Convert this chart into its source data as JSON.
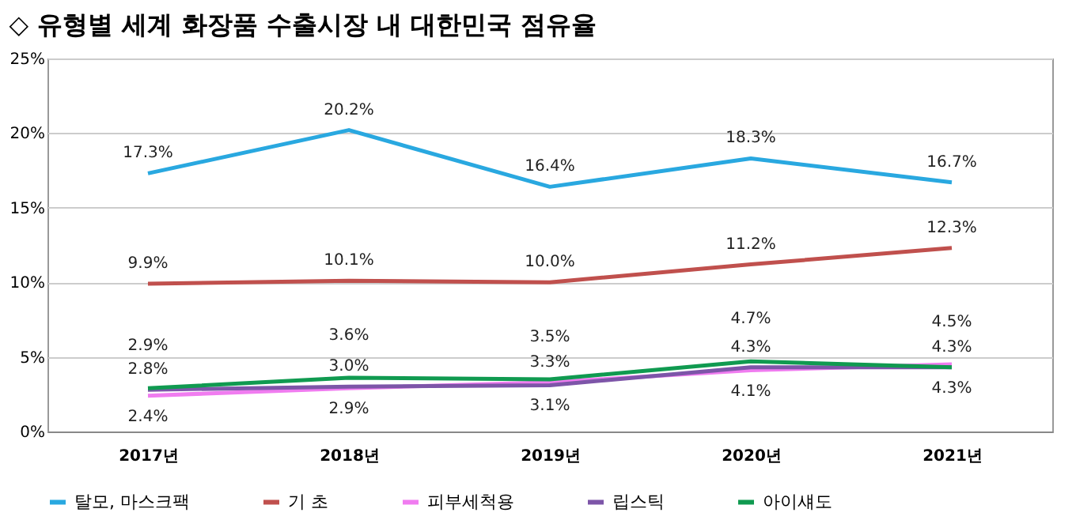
{
  "chart_data": {
    "type": "line",
    "title": "◇ 유형별 세계 화장품 수출시장 내 대한민국 점유율",
    "categories": [
      "2017년",
      "2018년",
      "2019년",
      "2020년",
      "2021년"
    ],
    "series": [
      {
        "name": "탈모, 마스크팩",
        "color": "#29a8e0",
        "values": [
          17.3,
          20.2,
          16.4,
          18.3,
          16.7
        ],
        "value_labels": [
          "17.3%",
          "20.2%",
          "16.4%",
          "18.3%",
          "16.7%"
        ]
      },
      {
        "name": "기 초",
        "color": "#c0504d",
        "values": [
          9.9,
          10.1,
          10.0,
          11.2,
          12.3
        ],
        "value_labels": [
          "9.9%",
          "10.1%",
          "10.0%",
          "11.2%",
          "12.3%"
        ]
      },
      {
        "name": "피부세척용",
        "color": "#f07cf0",
        "values": [
          2.4,
          2.9,
          3.3,
          4.1,
          4.5
        ],
        "value_labels": [
          "2.4%",
          "2.9%",
          "3.3%",
          "4.1%",
          "4.5%"
        ]
      },
      {
        "name": "립스틱",
        "color": "#7d55a8",
        "values": [
          2.8,
          3.0,
          3.1,
          4.3,
          4.3
        ],
        "value_labels": [
          "2.8%",
          "3.0%",
          "3.1%",
          "4.3%",
          "4.3%"
        ]
      },
      {
        "name": "아이섀도",
        "color": "#109a50",
        "values": [
          2.9,
          3.6,
          3.5,
          4.7,
          4.3
        ],
        "value_labels": [
          "2.9%",
          "3.6%",
          "3.5%",
          "4.7%",
          "4.3%"
        ]
      }
    ],
    "ylim": [
      0,
      25
    ],
    "yticks": [
      {
        "value": 0,
        "label": "0%"
      },
      {
        "value": 5,
        "label": "5%"
      },
      {
        "value": 10,
        "label": "10%"
      },
      {
        "value": 15,
        "label": "15%"
      },
      {
        "value": 20,
        "label": "20%"
      },
      {
        "value": 25,
        "label": "25%"
      }
    ],
    "grid": "y",
    "legend": "bottom",
    "marker": "none",
    "line_style": "solid"
  }
}
